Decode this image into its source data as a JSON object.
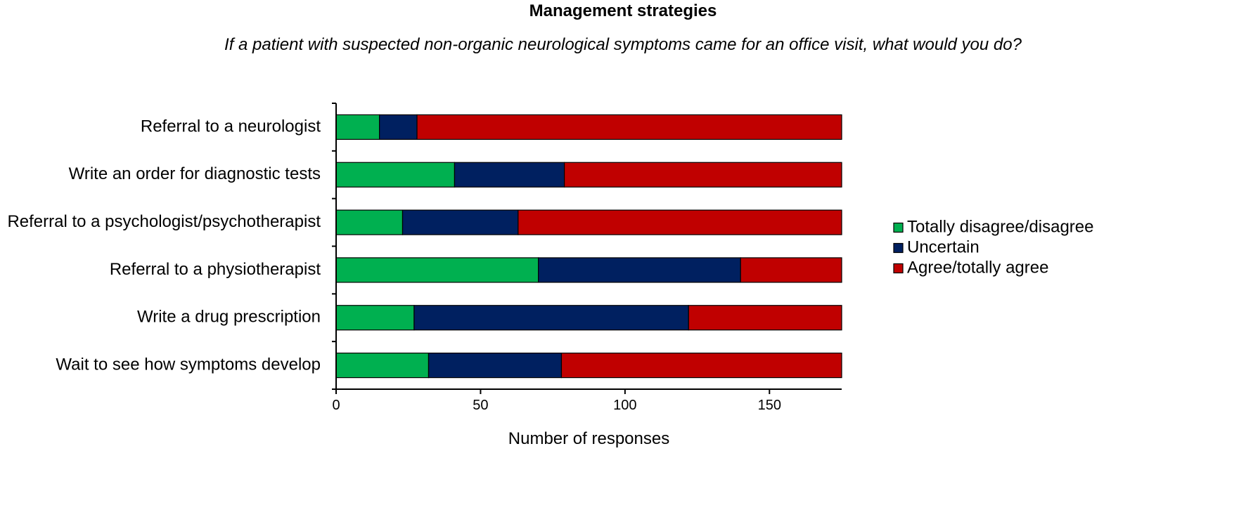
{
  "chart_data": {
    "type": "bar",
    "orientation": "horizontal",
    "stacked": true,
    "title": "Management strategies",
    "subtitle": "If a patient with suspected non-organic neurological symptoms came for an office visit, what would you do?",
    "xlabel": "Number of responses",
    "ylabel": "",
    "xlim": [
      0,
      175
    ],
    "xticks": [
      0,
      50,
      100,
      150
    ],
    "grid": false,
    "legend_position": "right",
    "categories": [
      "Referral to a neurologist",
      "Write an order for diagnostic tests",
      "Referral to a psychologist/psychotherapist",
      "Referral to a physiotherapist",
      "Write a drug prescription",
      "Wait to see how symptoms develop"
    ],
    "series": [
      {
        "name": "Totally disagree/disagree",
        "color": "#00b050",
        "values": [
          15,
          41,
          23,
          70,
          27,
          32
        ]
      },
      {
        "name": "Uncertain",
        "color": "#002060",
        "values": [
          13,
          38,
          40,
          70,
          95,
          46
        ]
      },
      {
        "name": "Agree/totally agree",
        "color": "#c00000",
        "values": [
          147,
          96,
          112,
          35,
          53,
          97
        ]
      }
    ]
  }
}
